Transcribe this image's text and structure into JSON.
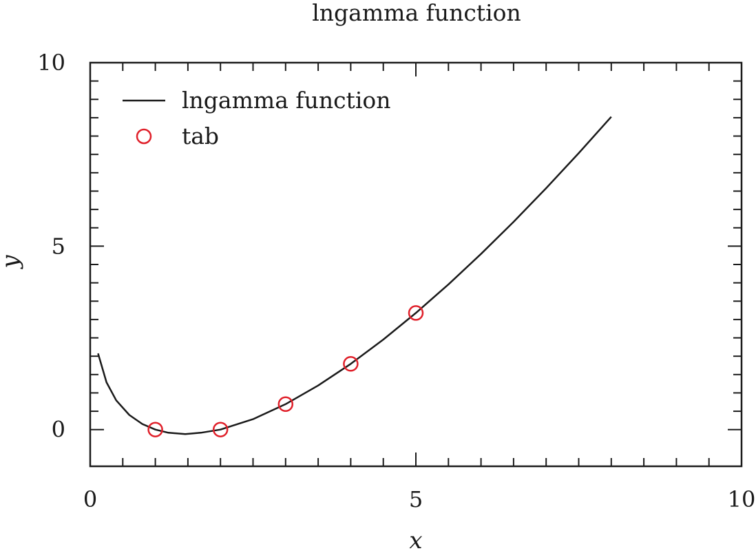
{
  "chart_data": {
    "type": "line",
    "title": "lngamma function",
    "xlabel": "x",
    "ylabel": "y",
    "xlim": [
      0,
      10
    ],
    "ylim": [
      -1,
      10
    ],
    "xticks": [
      "0",
      "5",
      "10"
    ],
    "yticks": [
      "0",
      "5",
      "10"
    ],
    "grid": false,
    "legend_position": "top-left",
    "series": [
      {
        "name": "lngamma function",
        "style": "line",
        "color": "#1a1a1a",
        "x": [
          0.12,
          0.25,
          0.4,
          0.6,
          0.8,
          1.0,
          1.2,
          1.46,
          1.7,
          2.0,
          2.5,
          3.0,
          3.5,
          4.0,
          4.5,
          5.0,
          5.5,
          6.0,
          6.5,
          7.0,
          7.5,
          8.0
        ],
        "y": [
          2.0768,
          1.288,
          0.7966,
          0.3982,
          0.1521,
          0.0,
          -0.0854,
          -0.1215,
          -0.0864,
          0.0,
          0.2847,
          0.6931,
          1.201,
          1.7918,
          2.4537,
          3.1781,
          3.9578,
          4.7875,
          5.6625,
          6.5793,
          7.5343,
          8.5252
        ]
      },
      {
        "name": "tab",
        "style": "markers",
        "marker": "open-circle",
        "color": "#e0202a",
        "x": [
          1,
          2,
          3,
          4,
          5
        ],
        "y": [
          0.0,
          0.0,
          0.6931,
          1.7918,
          3.1781
        ]
      }
    ]
  }
}
